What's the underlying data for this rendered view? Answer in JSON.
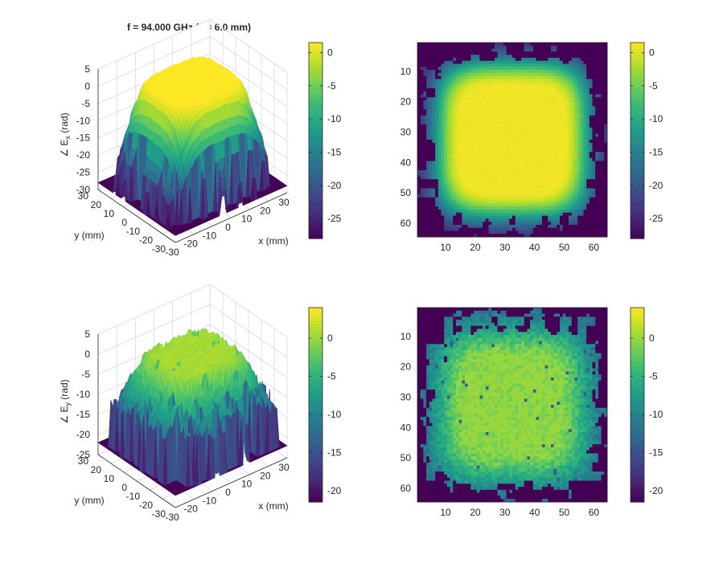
{
  "figure": {
    "title": "f = 94.000 GHz (z = 6.0 mm)"
  },
  "colors": {
    "colormap": "viridis",
    "viridis_stops": [
      "#440154",
      "#482878",
      "#3e4989",
      "#31688e",
      "#26828e",
      "#1f9e89",
      "#35b779",
      "#6ece58",
      "#b5de2b",
      "#fde725"
    ],
    "mesh_grid": "#d9d9d9",
    "axes": "#262626"
  },
  "chart_data": [
    {
      "type": "surface",
      "name": "Ex phase surface",
      "zlabel": "∠ E",
      "zlabel_sub": "x",
      "zlabel_unit": " (rad)",
      "xlabel": "x (mm)",
      "ylabel": "y (mm)",
      "xlim": [
        -30,
        30
      ],
      "ylim": [
        -30,
        30
      ],
      "zlim": [
        -30,
        5
      ],
      "xticks": [
        "-30",
        "-20",
        "-10",
        "0",
        "10",
        "20",
        "30"
      ],
      "yticks": [
        "30",
        "20",
        "10",
        "0",
        "-10",
        "-20",
        "-30"
      ],
      "zticks": [
        "5",
        "0",
        "-5",
        "-10",
        "-15",
        "-20",
        "-25",
        "-30"
      ],
      "plateau_value": 2,
      "floor_value": -28,
      "colorbar_ticks": [
        "0",
        "-5",
        "-10",
        "-15",
        "-20",
        "-25"
      ],
      "colorbar_range": [
        -28,
        1.5
      ]
    },
    {
      "type": "heatmap",
      "name": "Ex phase map",
      "xlim": [
        1,
        64
      ],
      "ylim": [
        1,
        64
      ],
      "xticks": [
        "10",
        "20",
        "30",
        "40",
        "50",
        "60"
      ],
      "yticks": [
        "10",
        "20",
        "30",
        "40",
        "50",
        "60"
      ],
      "plateau_value": 1,
      "floor_value": -28,
      "colorbar_ticks": [
        "0",
        "-5",
        "-10",
        "-15",
        "-20",
        "-25"
      ],
      "colorbar_range": [
        -28,
        1.5
      ]
    },
    {
      "type": "surface",
      "name": "Ey phase surface",
      "zlabel": "∠ E",
      "zlabel_sub": "y",
      "zlabel_unit": " (rad)",
      "xlabel": "x (mm)",
      "ylabel": "y (mm)",
      "xlim": [
        -30,
        30
      ],
      "ylim": [
        -30,
        30
      ],
      "zlim": [
        -25,
        5
      ],
      "xticks": [
        "-30",
        "-20",
        "-10",
        "0",
        "10",
        "20",
        "30"
      ],
      "yticks": [
        "30",
        "20",
        "10",
        "0",
        "-10",
        "-20",
        "-30"
      ],
      "zticks": [
        "5",
        "0",
        "-5",
        "-10",
        "-15",
        "-20",
        "-25"
      ],
      "plateau_value": 1,
      "floor_value": -22,
      "colorbar_ticks": [
        "0",
        "-5",
        "-10",
        "-15",
        "-20"
      ],
      "colorbar_range": [
        -21.5,
        4
      ]
    },
    {
      "type": "heatmap",
      "name": "Ey phase map",
      "xlim": [
        1,
        64
      ],
      "ylim": [
        1,
        64
      ],
      "xticks": [
        "10",
        "20",
        "30",
        "40",
        "50",
        "60"
      ],
      "yticks": [
        "10",
        "20",
        "30",
        "40",
        "50",
        "60"
      ],
      "plateau_value": 0,
      "floor_value": -21.5,
      "colorbar_ticks": [
        "0",
        "-5",
        "-10",
        "-15",
        "-20"
      ],
      "colorbar_range": [
        -21.5,
        4
      ]
    }
  ]
}
